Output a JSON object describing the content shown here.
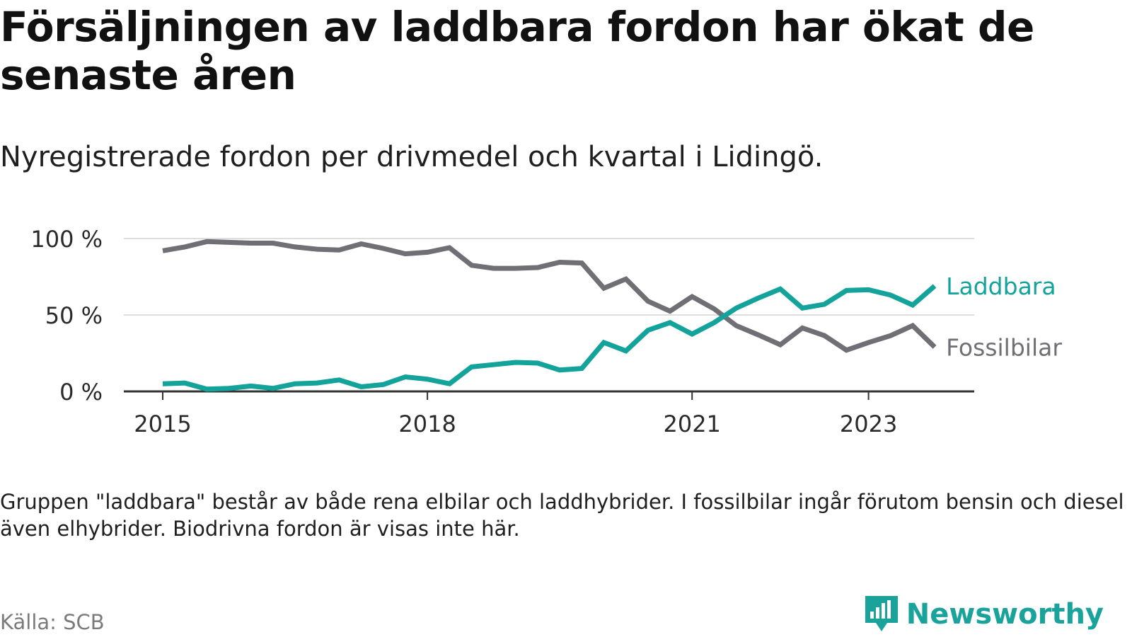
{
  "title": "Försäljningen av laddbara fordon har ökat de senaste åren",
  "subtitle": "Nyregistrerade fordon per drivmedel och kvartal i Lidingö.",
  "note": "Gruppen \"laddbara\" består av både rena elbilar och laddhybrider. I fossilbilar ingår förutom bensin och diesel även elhybrider. Biodrivna fordon är visas inte här.",
  "source": "Källa: SCB",
  "brand": "Newsworthy",
  "colors": {
    "laddbara": "#13a39a",
    "fossil": "#6f6f75",
    "grid": "#dedede",
    "axis": "#333333",
    "brand": "#1aa39a"
  },
  "chart_data": {
    "type": "line",
    "title": "Nyregistrerade fordon per drivmedel och kvartal i Lidingö.",
    "xlabel": "",
    "ylabel": "",
    "x_start": 2015.0,
    "x_step": 0.25,
    "xlim": [
      2014.6,
      2024.2
    ],
    "ylim": [
      0,
      100
    ],
    "y_ticks": [
      0,
      50,
      100
    ],
    "y_tick_labels": [
      "0 %",
      "50 %",
      "100 %"
    ],
    "x_ticks": [
      2015,
      2018,
      2021,
      2023
    ],
    "x_tick_labels": [
      "2015",
      "2018",
      "2021",
      "2023"
    ],
    "series": [
      {
        "name": "Laddbara",
        "color": "#13a39a",
        "values": [
          5,
          5.5,
          1.5,
          2,
          3.5,
          2,
          5,
          5.5,
          7.5,
          3,
          4.5,
          9.5,
          8,
          5,
          16,
          17.5,
          19,
          18.5,
          14,
          15,
          32,
          26.5,
          40,
          45,
          37.5,
          45,
          54.5,
          61,
          67,
          54.5,
          57,
          66,
          66.5,
          63,
          56.5,
          69
        ]
      },
      {
        "name": "Fossilbilar",
        "color": "#6f6f75",
        "values": [
          92,
          94.5,
          98,
          97.5,
          97,
          97,
          94.5,
          93,
          92.5,
          96.5,
          93.5,
          90,
          91,
          94,
          82.5,
          80.5,
          80.5,
          81,
          84.5,
          84,
          67.5,
          73.5,
          59,
          52.5,
          62,
          54,
          43,
          37,
          30.5,
          41.5,
          36.5,
          27,
          32,
          36.5,
          43,
          29
        ]
      }
    ]
  }
}
